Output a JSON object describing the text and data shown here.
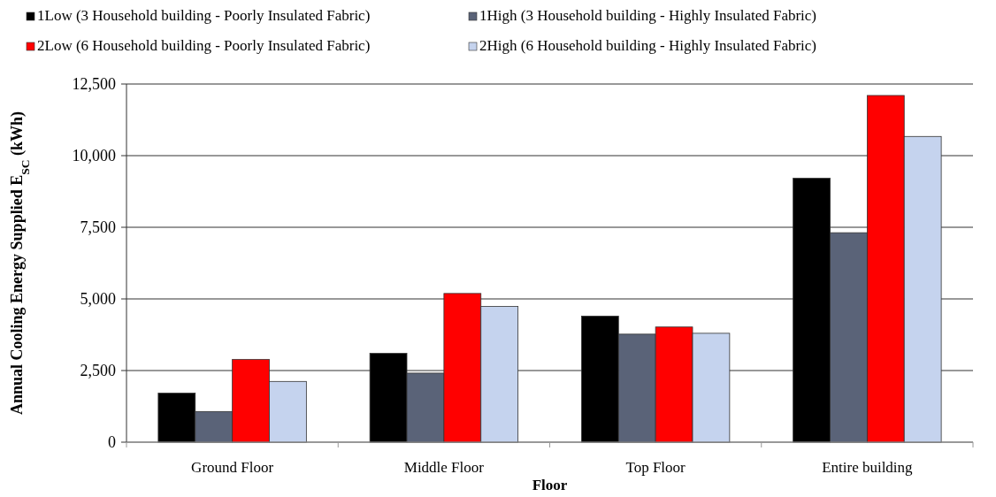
{
  "chart_data": {
    "type": "bar",
    "categories": [
      "Ground Floor",
      "Middle Floor",
      "Top Floor",
      "Entire building"
    ],
    "series": [
      {
        "name": "1Low (3 Household building - Poorly Insulated Fabric)",
        "color": "#000000",
        "values": [
          1710,
          3100,
          4400,
          9210
        ]
      },
      {
        "name": "1High (3 Household building - Highly Insulated Fabric)",
        "color": "#5a6378",
        "values": [
          1070,
          2410,
          3770,
          7310
        ]
      },
      {
        "name": "2Low (6 Household building - Poorly Insulated Fabric)",
        "color": "#ff0000",
        "values": [
          2890,
          5190,
          4020,
          12100
        ]
      },
      {
        "name": "2High (6 Household building - Highly Insulated Fabric)",
        "color": "#c5d3ee",
        "values": [
          2120,
          4740,
          3800,
          10670
        ]
      }
    ],
    "xlabel": "Floor",
    "ylabel": "Annual Cooling Energy Supplied E$_{SC}$ (kWh)",
    "ylim": [
      0,
      12500
    ],
    "yticks": [
      0,
      {
        "value": 2500,
        "label": "2,500"
      },
      {
        "value": 5000,
        "label": "5,000"
      },
      {
        "value": 7500,
        "label": "7,500"
      },
      {
        "value": 10000,
        "label": "10,000"
      },
      {
        "value": 12500,
        "label": "12,500"
      }
    ],
    "grid": "y",
    "legend": "top"
  }
}
